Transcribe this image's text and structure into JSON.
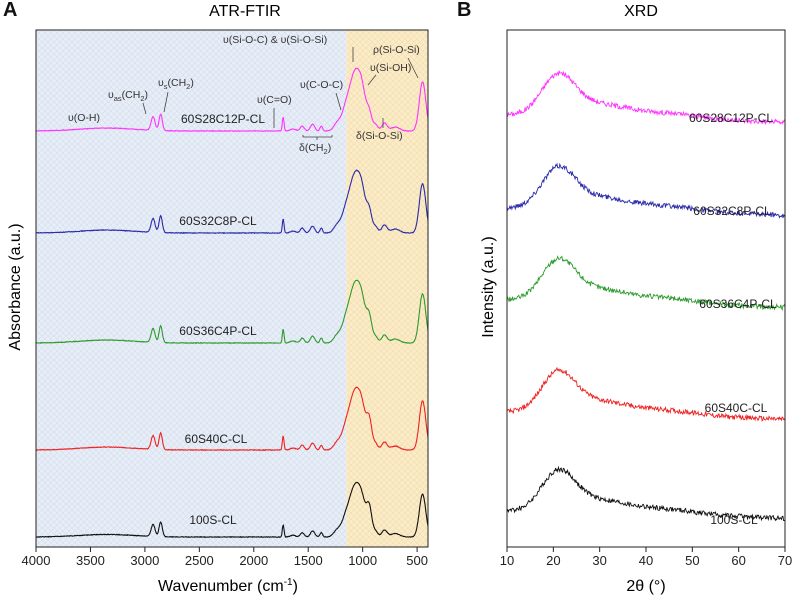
{
  "figure": {
    "panel_a_letter": "A",
    "panel_b_letter": "B"
  },
  "chart_data": [
    {
      "type": "line",
      "title": "ATR-FTIR",
      "xlabel": "Wavenumber (cm",
      "xlabel_sup": "-1",
      "xlabel_end": ")",
      "ylabel": "Absorbance (a.u.)",
      "xlim": [
        4000,
        400
      ],
      "x_ticks": [
        4000,
        3500,
        3000,
        2500,
        2000,
        1500,
        1000,
        500
      ],
      "shaded_regions": [
        {
          "from": 4000,
          "to": 1150,
          "color": "#e7eef7",
          "hatch": true
        },
        {
          "from": 1150,
          "to": 400,
          "color": "#fbeccd",
          "hatch": true
        }
      ],
      "series": [
        {
          "name": "60S28C12P-CL",
          "color": "#ff33ff",
          "offset": 4,
          "has_organics": true
        },
        {
          "name": "60S32C8P-CL",
          "color": "#2a2aa8",
          "offset": 3,
          "has_organics": true
        },
        {
          "name": "60S36C4P-CL",
          "color": "#2e9a2e",
          "offset": 2,
          "has_organics": true
        },
        {
          "name": "60S40C-CL",
          "color": "#ee2222",
          "offset": 1,
          "has_organics": true
        },
        {
          "name": "100S-CL",
          "color": "#111111",
          "offset": 0,
          "has_organics": true
        }
      ],
      "annotations": [
        {
          "label": "υ(O-H)",
          "wavenumber": 3350
        },
        {
          "label": "υas(CH2)",
          "wavenumber": 2925
        },
        {
          "label": "υs(CH2)",
          "wavenumber": 2855
        },
        {
          "label": "υ(C=O)",
          "wavenumber": 1730
        },
        {
          "label": "υ(C-O-C)",
          "wavenumber": 1160
        },
        {
          "label": "δ(CH2)",
          "wavenumber": 1420
        },
        {
          "label": "υ(Si-O-C) & υ(Si-O-Si)",
          "wavenumber": 1060
        },
        {
          "label": "υ(Si-OH)",
          "wavenumber": 950
        },
        {
          "label": "ρ(Si-O-Si)",
          "wavenumber": 450
        },
        {
          "label": "δ(Si-O-Si)",
          "wavenumber": 800
        }
      ],
      "annotation_parts": {
        "oh": "υ(O-H)",
        "as_pre": "υ",
        "as_sub": "as",
        "as_post": "(CH",
        "s_pre": "υ",
        "s_sub": "s",
        "s_post": "(CH",
        "ch2_sub": "2",
        "close": ")",
        "co": "υ(C=O)",
        "coc": "υ(C-O-C)",
        "dch2_pre": "δ(CH",
        "siosi_main": "υ(Si-O-C) & υ(Si-O-Si)",
        "sioh": "υ(Si-OH)",
        "rho": "ρ(Si-O-Si)",
        "delta": "δ(Si-O-Si)"
      }
    },
    {
      "type": "line",
      "title": "XRD",
      "xlabel": "2θ (°)",
      "ylabel": "Intensity (a.u.)",
      "xlim": [
        10,
        70
      ],
      "x_ticks": [
        10,
        20,
        30,
        40,
        50,
        60,
        70
      ],
      "peak_2theta": 21,
      "series": [
        {
          "name": "60S28C12P-CL",
          "color": "#ff33ff",
          "offset": 4
        },
        {
          "name": "60S32C8P-CL",
          "color": "#2a2aa8",
          "offset": 3
        },
        {
          "name": "60S36C4P-CL",
          "color": "#2e9a2e",
          "offset": 2
        },
        {
          "name": "60S40C-CL",
          "color": "#ee2222",
          "offset": 1
        },
        {
          "name": "100S-CL",
          "color": "#111111",
          "offset": 0
        }
      ]
    }
  ]
}
